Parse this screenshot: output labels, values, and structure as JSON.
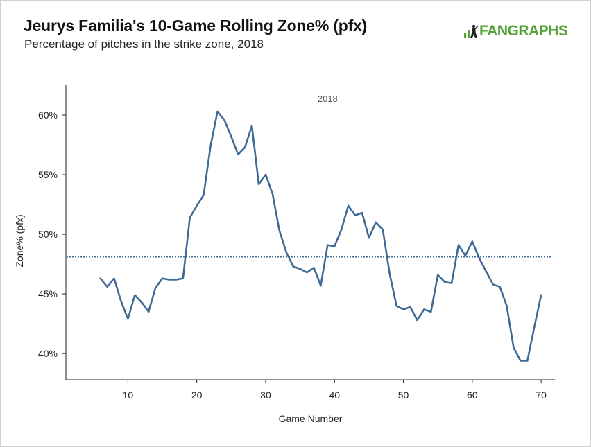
{
  "header": {
    "title": "Jeurys Familia's 10-Game Rolling Zone% (pfx)",
    "subtitle": "Percentage of pitches in the strike zone, 2018",
    "logo_text": "FANGRAPHS"
  },
  "colors": {
    "line": "#3e6a96",
    "reference": "#3e6a96",
    "logo": "#54a33a"
  },
  "chart_data": {
    "type": "line",
    "title": "Jeurys Familia's 10-Game Rolling Zone% (pfx)",
    "subtitle": "Percentage of pitches in the strike zone, 2018",
    "xlabel": "Game Number",
    "ylabel": "Zone% (pfx)",
    "xlim": [
      1,
      72
    ],
    "ylim": [
      37.8,
      62.5
    ],
    "xticks": [
      10,
      20,
      30,
      40,
      50,
      60,
      70
    ],
    "xtick_labels": [
      "10",
      "20",
      "30",
      "40",
      "50",
      "60",
      "70"
    ],
    "yticks": [
      40,
      45,
      50,
      55,
      60
    ],
    "ytick_labels": [
      "40%",
      "45%",
      "50%",
      "55%",
      "60%"
    ],
    "reference_line": {
      "y": 48.1,
      "style": "dotted"
    },
    "annotations": [
      {
        "text": "2018",
        "x": 39,
        "y": 61.4
      }
    ],
    "grid": false,
    "series": [
      {
        "x": [
          6,
          7,
          8,
          9,
          10,
          11,
          12,
          13,
          14,
          15,
          16,
          17,
          18,
          19,
          20,
          21,
          22,
          23,
          24,
          25,
          26,
          27,
          28,
          29,
          30,
          31,
          32,
          33,
          34,
          35,
          36,
          37,
          38,
          39,
          40,
          41,
          42,
          43,
          44,
          45,
          46,
          47,
          48,
          49,
          50,
          51,
          52,
          53,
          54,
          55,
          56,
          57,
          58,
          59,
          60,
          61,
          62,
          63,
          64,
          65,
          66,
          67,
          68,
          69,
          70
        ],
        "y": [
          46.3,
          45.6,
          46.3,
          44.4,
          42.9,
          44.9,
          44.3,
          43.5,
          45.5,
          46.3,
          46.2,
          46.2,
          46.3,
          51.4,
          52.4,
          53.3,
          57.4,
          60.3,
          59.6,
          58.2,
          56.7,
          57.3,
          59.1,
          54.2,
          55.0,
          53.4,
          50.3,
          48.5,
          47.3,
          47.1,
          46.8,
          47.2,
          45.7,
          49.1,
          49.0,
          50.4,
          52.4,
          51.6,
          51.8,
          49.7,
          51.0,
          50.4,
          46.7,
          44.0,
          43.7,
          43.9,
          42.8,
          43.7,
          43.5,
          46.6,
          46.0,
          45.9,
          49.1,
          48.2,
          49.4,
          48.0,
          46.9,
          45.8,
          45.6,
          44.0,
          40.5,
          39.4,
          39.4,
          42.2,
          44.9
        ]
      }
    ]
  }
}
